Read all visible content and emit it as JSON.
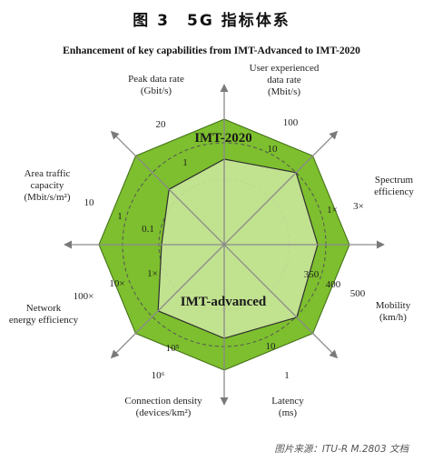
{
  "figure_title": "图 3　5G 指标体系",
  "subtitle": "Enhancement of key capabilities from IMT-Advanced to IMT-2020",
  "source": "图片来源：ITU-R M.2803 文档",
  "colors": {
    "outer_fill": "#7dbf2e",
    "inner_fill": "#c9e59a",
    "axis": "#8a8a8a",
    "dash": "#555555"
  },
  "chart_data": {
    "type": "radar",
    "series": [
      {
        "name": "IMT-2020"
      },
      {
        "name": "IMT-advanced"
      }
    ],
    "axes": [
      {
        "label": [
          "Peak data rate",
          "(Gbit/s)"
        ],
        "imt2020": "20",
        "imt_advanced": "1",
        "tick_low": ""
      },
      {
        "label": [
          "User experienced",
          "data rate",
          "(Mbit/s)"
        ],
        "imt2020": "100",
        "imt_advanced": "10",
        "tick_low": ""
      },
      {
        "label": [
          "Spectrum",
          "efficiency"
        ],
        "imt2020": "3×",
        "imt_advanced": "1×",
        "tick_low": ""
      },
      {
        "label": [
          "Mobility",
          "(km/h)"
        ],
        "imt2020": "500",
        "imt_advanced": "350",
        "tick_low": "400"
      },
      {
        "label": [
          "Latency",
          "(ms)"
        ],
        "imt2020": "1",
        "imt_advanced": "10",
        "tick_low": ""
      },
      {
        "label": [
          "Connection density",
          "(devices/km²)"
        ],
        "imt2020": "10⁶",
        "imt_advanced": "10⁵",
        "tick_low": ""
      },
      {
        "label": [
          "Network",
          "energy efficiency"
        ],
        "imt2020": "100×",
        "imt_advanced": "1×",
        "tick_low": "10×"
      },
      {
        "label": [
          "Area traffic",
          "capacity",
          "(Mbit/s/m²)"
        ],
        "imt2020": "10",
        "imt_advanced": "0.1",
        "tick_low": "1"
      }
    ]
  }
}
